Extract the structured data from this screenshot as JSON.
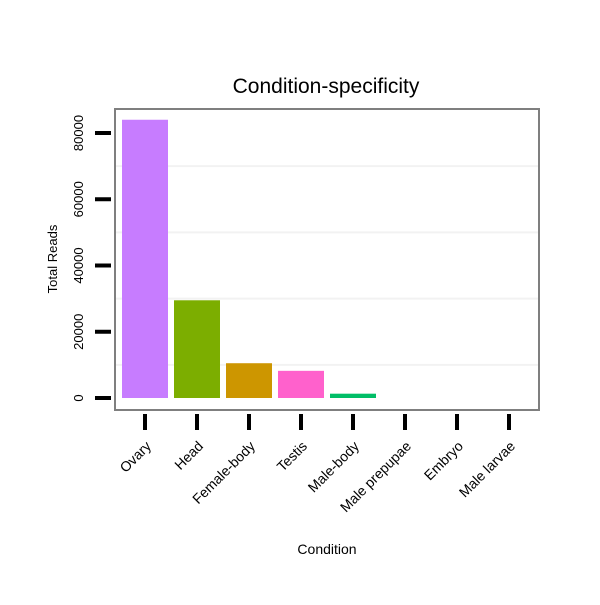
{
  "chart_data": {
    "type": "bar",
    "title": "Condition-specificity",
    "xlabel": "Condition",
    "ylabel": "Total Reads",
    "categories": [
      "Ovary",
      "Head",
      "Female-body",
      "Testis",
      "Male-body",
      "Male prepupae",
      "Embryo",
      "Male larvae"
    ],
    "values": [
      84000,
      29500,
      10500,
      8200,
      1300,
      0,
      0,
      0
    ],
    "colors": [
      "#C77CFF",
      "#7CAE00",
      "#CD9600",
      "#FF61CC",
      "#00BE67",
      "#00BFC4",
      "#00A9FF",
      "#F8766D"
    ],
    "ylim": [
      0,
      88000
    ],
    "yticks": [
      0,
      20000,
      40000,
      60000,
      80000
    ],
    "ytick_labels": [
      "0",
      "20000",
      "40000",
      "60000",
      "80000"
    ],
    "grid": true,
    "legend": "none"
  }
}
